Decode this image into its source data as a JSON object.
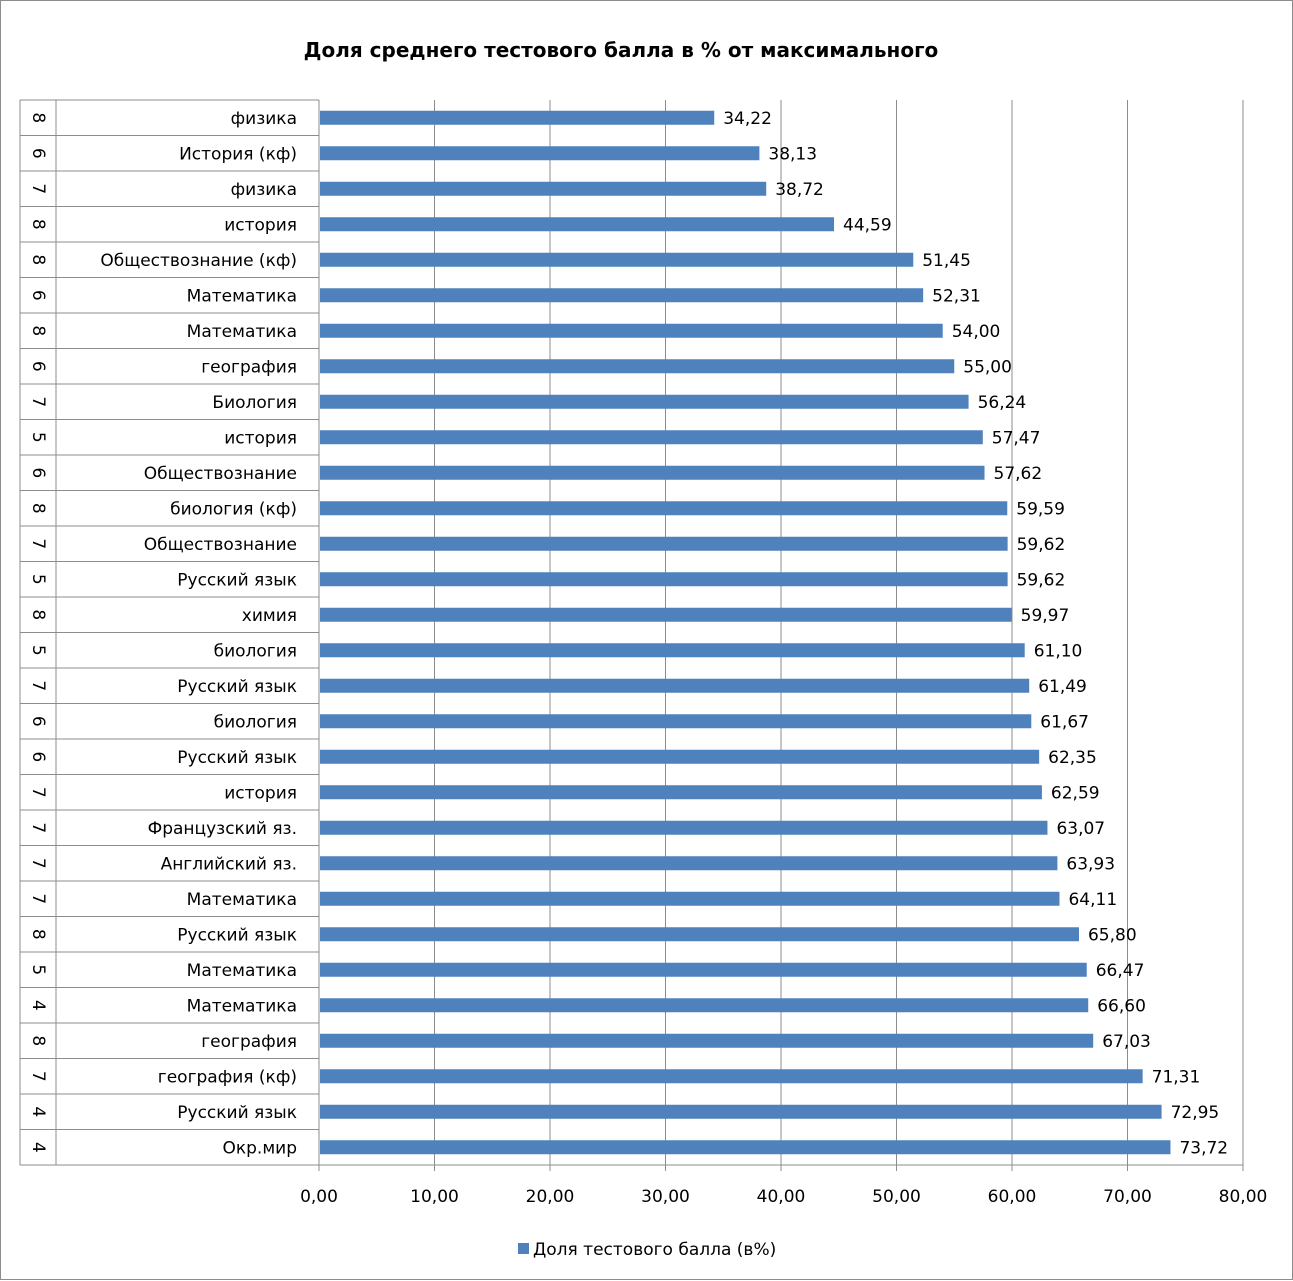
{
  "chart_data": {
    "type": "bar",
    "orientation": "horizontal",
    "title": "Доля среднего тестового балла  в % от максимального",
    "xlim": [
      0,
      80
    ],
    "x_ticks": [
      "0,00",
      "10,00",
      "20,00",
      "30,00",
      "40,00",
      "50,00",
      "60,00",
      "70,00",
      "80,00"
    ],
    "grid": true,
    "legend_position": "bottom",
    "bar_color": "#4f81bd",
    "series": [
      {
        "name": "Доля тестового балла (в%)"
      }
    ],
    "rows": [
      {
        "grade": "8",
        "subject": "физика",
        "value": 34.22,
        "label": "34,22"
      },
      {
        "grade": "6",
        "subject": "История (кф)",
        "value": 38.13,
        "label": "38,13"
      },
      {
        "grade": "7",
        "subject": "физика",
        "value": 38.72,
        "label": "38,72"
      },
      {
        "grade": "8",
        "subject": "история",
        "value": 44.59,
        "label": "44,59"
      },
      {
        "grade": "8",
        "subject": "Обществознание (кф)",
        "value": 51.45,
        "label": "51,45"
      },
      {
        "grade": "6",
        "subject": "Математика",
        "value": 52.31,
        "label": "52,31"
      },
      {
        "grade": "8",
        "subject": "Математика",
        "value": 54.0,
        "label": "54,00"
      },
      {
        "grade": "6",
        "subject": "география",
        "value": 55.0,
        "label": "55,00"
      },
      {
        "grade": "7",
        "subject": "Биология",
        "value": 56.24,
        "label": "56,24"
      },
      {
        "grade": "5",
        "subject": "история",
        "value": 57.47,
        "label": "57,47"
      },
      {
        "grade": "6",
        "subject": "Обществознание",
        "value": 57.62,
        "label": "57,62"
      },
      {
        "grade": "8",
        "subject": "биология (кф)",
        "value": 59.59,
        "label": "59,59"
      },
      {
        "grade": "7",
        "subject": "Обществознание",
        "value": 59.62,
        "label": "59,62"
      },
      {
        "grade": "5",
        "subject": "Русский язык",
        "value": 59.62,
        "label": "59,62"
      },
      {
        "grade": "8",
        "subject": "химия",
        "value": 59.97,
        "label": "59,97"
      },
      {
        "grade": "5",
        "subject": "биология",
        "value": 61.1,
        "label": "61,10"
      },
      {
        "grade": "7",
        "subject": "Русский язык",
        "value": 61.49,
        "label": "61,49"
      },
      {
        "grade": "6",
        "subject": "биология",
        "value": 61.67,
        "label": "61,67"
      },
      {
        "grade": "6",
        "subject": "Русский язык",
        "value": 62.35,
        "label": "62,35"
      },
      {
        "grade": "7",
        "subject": "история",
        "value": 62.59,
        "label": "62,59"
      },
      {
        "grade": "7",
        "subject": "Французский яз.",
        "value": 63.07,
        "label": "63,07"
      },
      {
        "grade": "7",
        "subject": "Английский яз.",
        "value": 63.93,
        "label": "63,93"
      },
      {
        "grade": "7",
        "subject": "Математика",
        "value": 64.11,
        "label": "64,11"
      },
      {
        "grade": "8",
        "subject": "Русский язык",
        "value": 65.8,
        "label": "65,80"
      },
      {
        "grade": "5",
        "subject": "Математика",
        "value": 66.47,
        "label": "66,47"
      },
      {
        "grade": "4",
        "subject": "Математика",
        "value": 66.6,
        "label": "66,60"
      },
      {
        "grade": "8",
        "subject": "география",
        "value": 67.03,
        "label": "67,03"
      },
      {
        "grade": "7",
        "subject": "география (кф)",
        "value": 71.31,
        "label": "71,31"
      },
      {
        "grade": "4",
        "subject": "Русский язык",
        "value": 72.95,
        "label": "72,95"
      },
      {
        "grade": "4",
        "subject": "Окр.мир",
        "value": 73.72,
        "label": "73,72"
      }
    ]
  }
}
